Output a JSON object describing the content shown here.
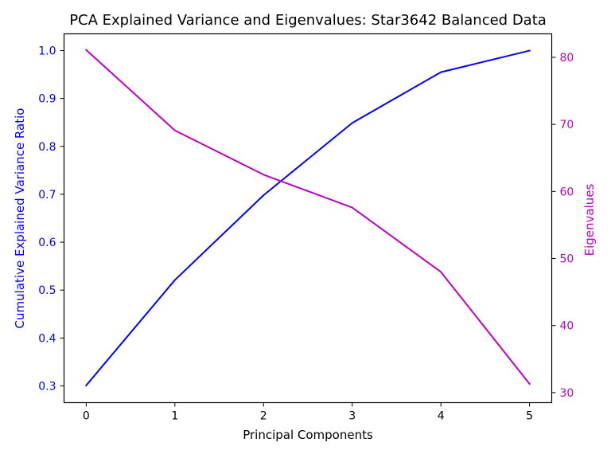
{
  "chart_data": {
    "type": "line",
    "title": "PCA Explained Variance and Eigenvalues: Star3642 Balanced Data",
    "xlabel": "Principal Components",
    "x": [
      0,
      1,
      2,
      3,
      4,
      5
    ],
    "xticks": [
      "0",
      "1",
      "2",
      "3",
      "4",
      "5"
    ],
    "xlim": [
      -0.25,
      5.25
    ],
    "grid": false,
    "y_left": {
      "label": "Cumulative Explained Variance Ratio",
      "color": "#0000ff",
      "ticks": [
        "0.3",
        "0.4",
        "0.5",
        "0.6",
        "0.7",
        "0.8",
        "0.9",
        "1.0"
      ],
      "tick_values": [
        0.3,
        0.4,
        0.5,
        0.6,
        0.7,
        0.8,
        0.9,
        1.0
      ],
      "ylim": [
        0.265,
        1.035
      ]
    },
    "y_right": {
      "label": "Eigenvalues",
      "color": "#bf00bf",
      "ticks": [
        "30",
        "40",
        "50",
        "60",
        "70",
        "80"
      ],
      "tick_values": [
        30,
        40,
        50,
        60,
        70,
        80
      ],
      "ylim": [
        28.5,
        83.5
      ]
    },
    "series": [
      {
        "axis": "left",
        "color": "#0000ff",
        "values": [
          0.301,
          0.521,
          0.698,
          0.849,
          0.955,
          1.0
        ]
      },
      {
        "axis": "right",
        "color": "#bf00bf",
        "values": [
          81.1,
          69.1,
          62.5,
          57.6,
          48.0,
          31.3
        ]
      }
    ]
  }
}
